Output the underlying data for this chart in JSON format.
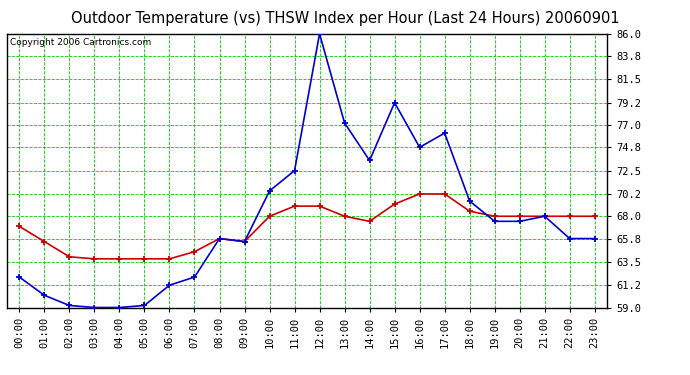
{
  "title": "Outdoor Temperature (vs) THSW Index per Hour (Last 24 Hours) 20060901",
  "copyright": "Copyright 2006 Cartronics.com",
  "hours": [
    0,
    1,
    2,
    3,
    4,
    5,
    6,
    7,
    8,
    9,
    10,
    11,
    12,
    13,
    14,
    15,
    16,
    17,
    18,
    19,
    20,
    21,
    22,
    23
  ],
  "temp_outdoor": [
    67.0,
    65.5,
    64.0,
    63.8,
    63.8,
    63.8,
    63.8,
    64.5,
    65.8,
    65.5,
    68.0,
    69.0,
    69.0,
    68.0,
    67.5,
    69.2,
    70.2,
    70.2,
    68.5,
    68.0,
    68.0,
    68.0,
    68.0,
    68.0
  ],
  "thsw_index": [
    62.0,
    60.2,
    59.2,
    59.0,
    59.0,
    59.2,
    61.2,
    62.0,
    65.8,
    65.5,
    70.5,
    72.5,
    86.0,
    77.2,
    73.5,
    79.2,
    74.8,
    76.2,
    69.5,
    67.5,
    67.5,
    68.0,
    65.8,
    65.8
  ],
  "ylim_min": 59.0,
  "ylim_max": 86.0,
  "yticks": [
    59.0,
    61.2,
    63.5,
    65.8,
    68.0,
    70.2,
    72.5,
    74.8,
    77.0,
    79.2,
    81.5,
    83.8,
    86.0
  ],
  "bg_color": "#ffffff",
  "plot_bg_color": "#ffffff",
  "grid_color": "#00cc00",
  "temp_color": "#cc0000",
  "thsw_color": "#0000cc",
  "border_color": "#000000",
  "title_fontsize": 10.5,
  "tick_fontsize": 7.5,
  "copyright_fontsize": 6.5
}
